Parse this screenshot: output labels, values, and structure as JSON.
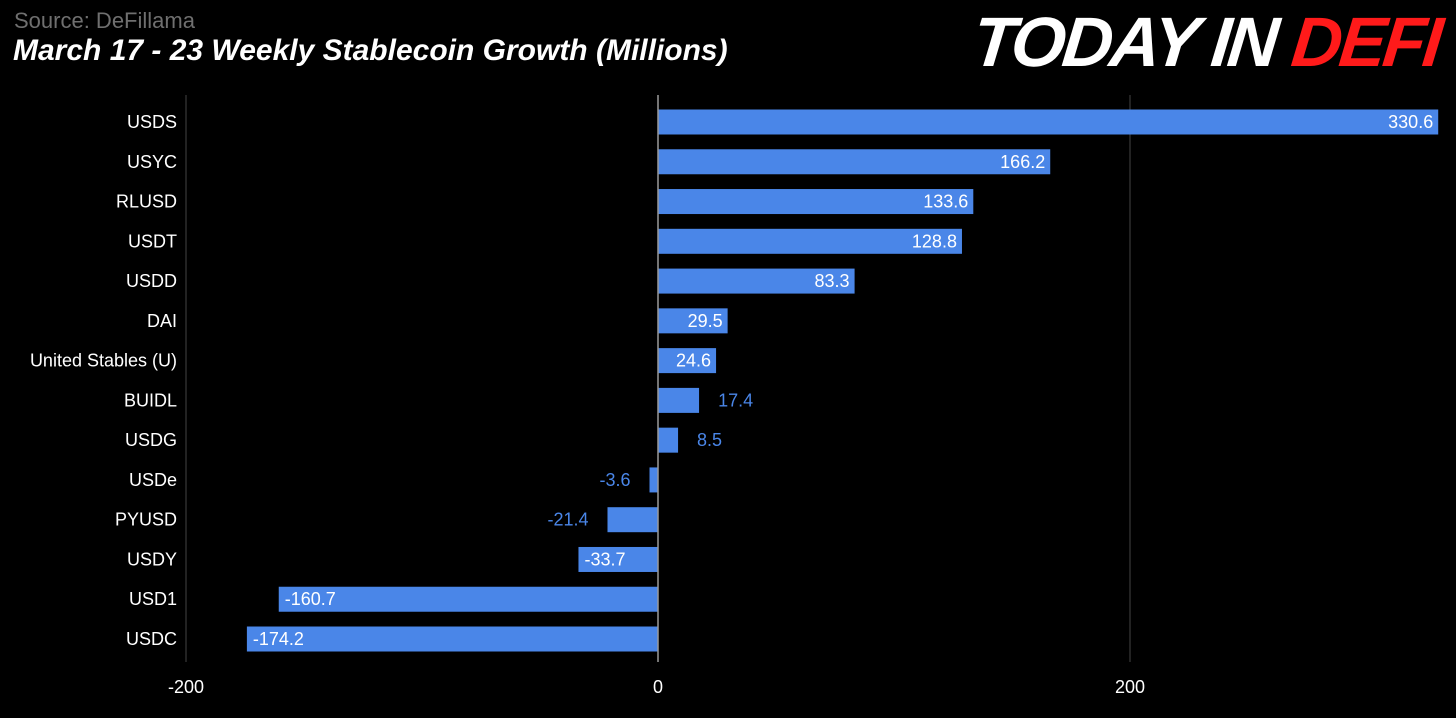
{
  "header": {
    "source": "Source: DeFillama",
    "title": "March 17 - 23 Weekly Stablecoin Growth (Millions)",
    "brand_white": "TODAY IN ",
    "brand_red": "DEFI"
  },
  "colors": {
    "bar": "#4a86e8",
    "brand_red": "#ff1a1a",
    "background": "#000000",
    "grid": "#444444"
  },
  "chart_data": {
    "type": "bar",
    "orientation": "horizontal",
    "title": "March 17 - 23 Weekly Stablecoin Growth (Millions)",
    "categories": [
      "USDS",
      "USYC",
      "RLUSD",
      "USDT",
      "USDD",
      "DAI",
      "United Stables (U)",
      "BUIDL",
      "USDG",
      "USDe",
      "PYUSD",
      "USDY",
      "USD1",
      "USDC"
    ],
    "values": [
      330.6,
      166.2,
      133.6,
      128.8,
      83.3,
      29.5,
      24.6,
      17.4,
      8.5,
      -3.6,
      -21.4,
      -33.7,
      -160.7,
      -174.2
    ],
    "value_labels": [
      "330.6",
      "166.2",
      "133.6",
      "128.8",
      "83.3",
      "29.5",
      "24.6",
      "17.4",
      "8.5",
      "-3.6",
      "-21.4",
      "-33.7",
      "-160.7",
      "-174.2"
    ],
    "xticks": [
      -200,
      0,
      200
    ],
    "xtick_labels": [
      "-200",
      "0",
      "200"
    ],
    "xlim": [
      -200,
      330.6
    ],
    "grid": true
  }
}
